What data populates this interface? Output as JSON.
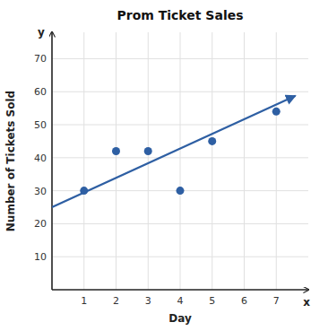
{
  "chart_data": {
    "type": "scatter",
    "title": "Prom Ticket Sales",
    "xlabel": "Day",
    "ylabel": "Number of Tickets Sold",
    "series": [
      {
        "type": "scatter",
        "x": [
          1,
          2,
          3,
          4,
          5,
          7
        ],
        "values": [
          30,
          42,
          42,
          30,
          45,
          54
        ],
        "color": "#2e5fa3"
      },
      {
        "type": "line",
        "x": [
          0.0,
          7.6
        ],
        "values": [
          25.0,
          58.8
        ],
        "color": "#2e5fa3",
        "marker": "arrow"
      }
    ],
    "xlim": [
      0,
      8.0
    ],
    "ylim": [
      0,
      78
    ],
    "xticks": [
      1,
      2,
      3,
      4,
      5,
      6,
      7
    ],
    "yticks": [
      10,
      20,
      30,
      40,
      50,
      60,
      70
    ],
    "grid": true,
    "annotations": [
      "x",
      "y"
    ]
  }
}
